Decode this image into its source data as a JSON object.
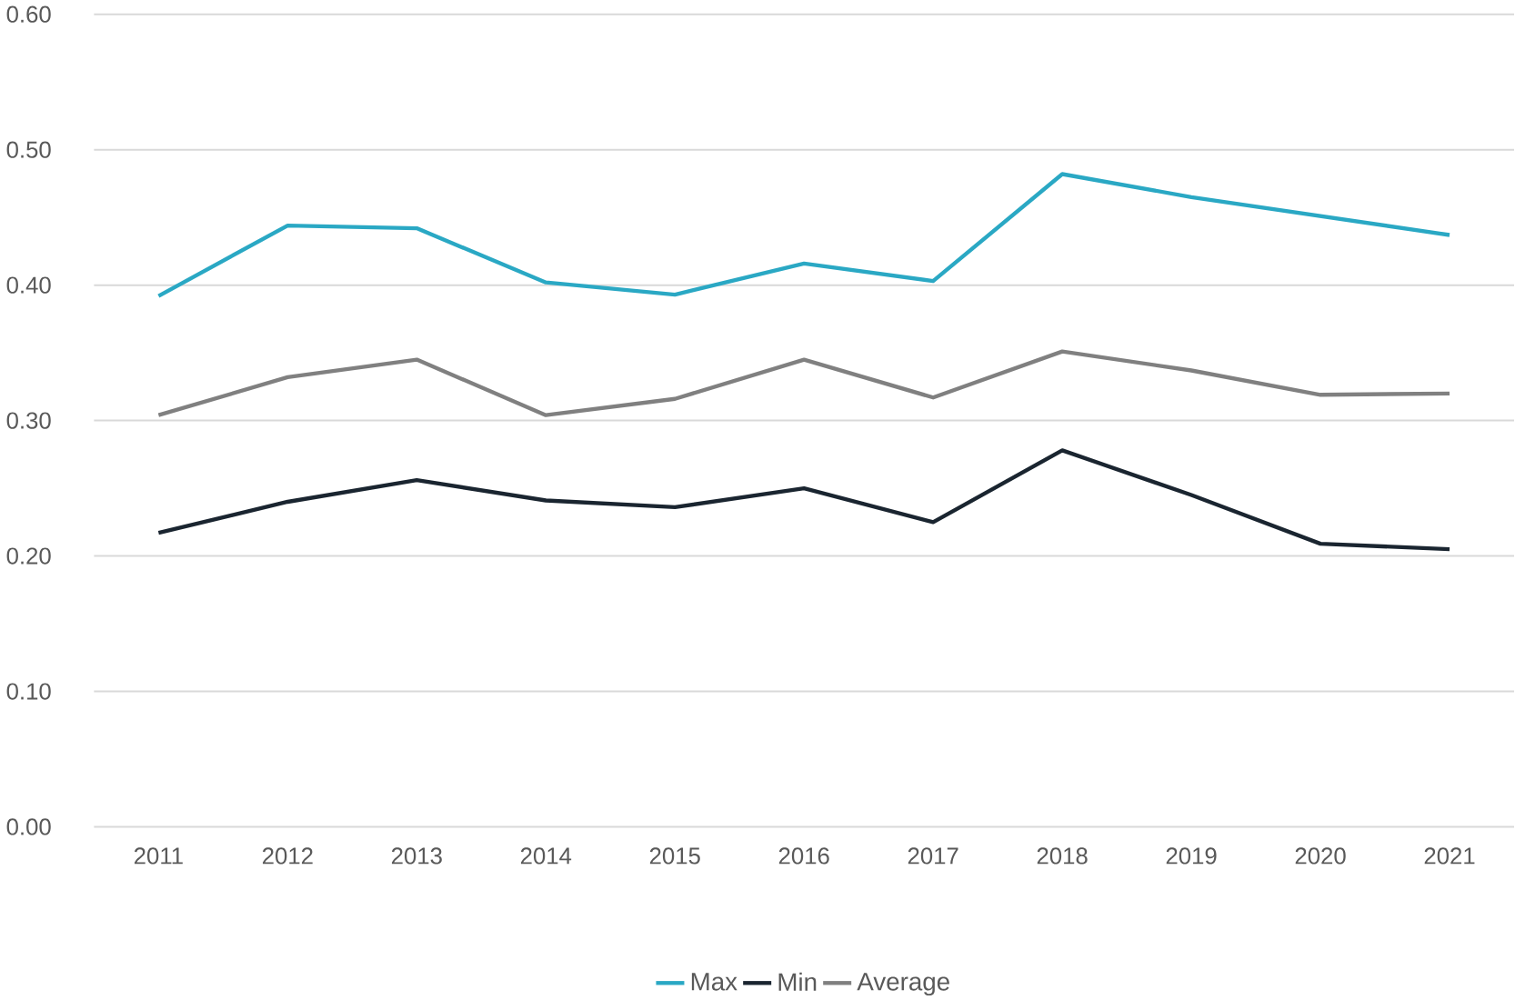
{
  "chart_data": {
    "type": "line",
    "categories": [
      "2011",
      "2012",
      "2013",
      "2014",
      "2015",
      "2016",
      "2017",
      "2018",
      "2019",
      "2020",
      "2021"
    ],
    "series": [
      {
        "name": "Max",
        "color": "#2aa8c4",
        "values": [
          0.392,
          0.444,
          0.442,
          0.402,
          0.393,
          0.416,
          0.403,
          0.482,
          0.465,
          0.451,
          0.437
        ]
      },
      {
        "name": "Min",
        "color": "#1a2530",
        "values": [
          0.217,
          0.24,
          0.256,
          0.241,
          0.236,
          0.25,
          0.225,
          0.278,
          0.245,
          0.209,
          0.205
        ]
      },
      {
        "name": "Average",
        "color": "#808080",
        "values": [
          0.304,
          0.332,
          0.345,
          0.304,
          0.316,
          0.345,
          0.317,
          0.351,
          0.337,
          0.319,
          0.32
        ]
      }
    ],
    "ylim": [
      0,
      0.6
    ],
    "yticks": [
      {
        "value": 0,
        "label": "0.00"
      },
      {
        "value": 0.1,
        "label": "0.10"
      },
      {
        "value": 0.2,
        "label": "0.20"
      },
      {
        "value": 0.3,
        "label": "0.30"
      },
      {
        "value": 0.4,
        "label": "0.40"
      },
      {
        "value": 0.5,
        "label": "0.50"
      },
      {
        "value": 0.6,
        "label": "0.60"
      }
    ],
    "grid": "y",
    "legend": "bottom",
    "marker": "none",
    "line_style": "solid"
  }
}
